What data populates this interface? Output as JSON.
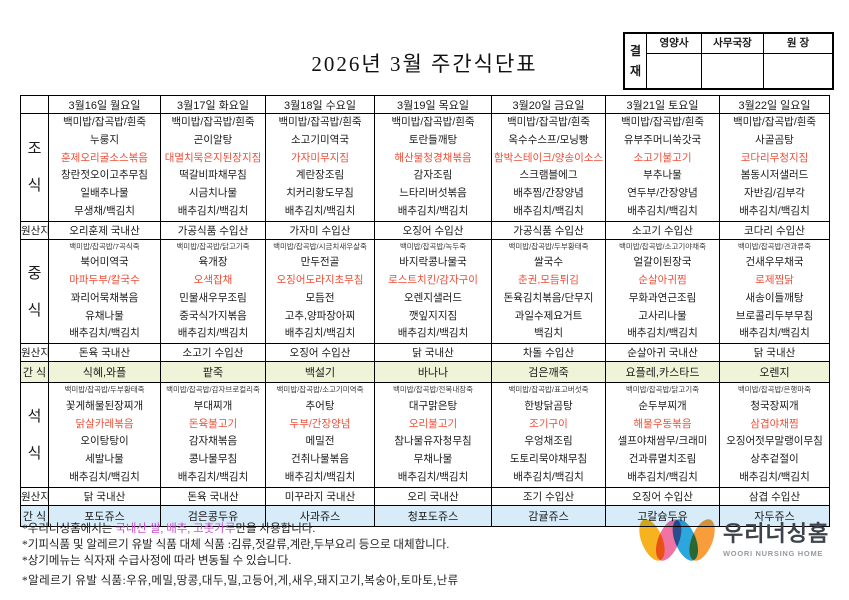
{
  "title": "2026년 3월 주간식단표",
  "approval": {
    "stamp": "결재",
    "cols": [
      "영양사",
      "사무국장",
      "원 장"
    ]
  },
  "colors": {
    "menu_highlight": "#ee4f38",
    "note_highlight": "#cb4fcb",
    "snack_row1_bg": "#eff4d8",
    "snack_row2_bg": "#d7ecf8",
    "logo_yellow": "#f6b21f",
    "logo_pink": "#f173a3",
    "logo_blue": "#2ba7dd",
    "logo_orange": "#f79d3c"
  },
  "table": {
    "days": [
      "3월16일 월요일",
      "3월17일 화요일",
      "3월18일 수요일",
      "3월19일 목요일",
      "3월20일 금요일",
      "3월21일 토요일",
      "3월22일 일요일"
    ],
    "sections": [
      {
        "id": "breakfast",
        "kind": "meal",
        "label": "조식",
        "red_index": 2,
        "days": [
          {
            "items": [
              "백미밥/잡곡밥/흰죽",
              "누룽지",
              "훈제오리굴소스볶음",
              "창란젓오이고추무침",
              "일배추나물",
              "무생채/백김치"
            ]
          },
          {
            "items": [
              "백미밥/잡곡밥/흰죽",
              "곤이알탕",
              "대멸치묵은지된장지짐",
              "떡갈비파채무침",
              "시금치나물",
              "배추김치/백김치"
            ]
          },
          {
            "items": [
              "백미밥/잡곡밥/흰죽",
              "소고기미역국",
              "가자미무지짐",
              "계란장조림",
              "치커리황도무침",
              "배추김치/백김치"
            ]
          },
          {
            "items": [
              "백미밥/잡곡밥/흰죽",
              "토란들깨탕",
              "해산물청경채볶음",
              "감자조림",
              "느타리버섯볶음",
              "배추김치/백김치"
            ]
          },
          {
            "items": [
              "백미밥/잡곡밥/흰죽",
              "옥수수스프/모닝빵",
              "함박스테이크/양송이소스",
              "스크램블에그",
              "배추찜/간장양념",
              "배추김치/백김치"
            ]
          },
          {
            "items": [
              "백미밥/잡곡밥/흰죽",
              "유부주머니쑥갓국",
              "소고기불고기",
              "부추나물",
              "연두부/간장양념",
              "배추김치/백김치"
            ]
          },
          {
            "items": [
              "백미밥/잡곡밥/흰죽",
              "사골곰탕",
              "코다리무청지짐",
              "봄동시저샐러드",
              "자반김/김부각",
              "배추김치/백김치"
            ]
          }
        ]
      },
      {
        "id": "origin-breakfast",
        "kind": "origin",
        "label": "원산지",
        "values": [
          "오리훈제 국내산",
          "가공식품 수입산",
          "가자미 수입산",
          "오징어 수입산",
          "가공식품 수입산",
          "소고기 수입산",
          "코다리 수입산"
        ]
      },
      {
        "id": "lunch",
        "kind": "meal",
        "label": "중식",
        "red_index": 1,
        "days": [
          {
            "rice": "백미밥/잡곡밥/7곡식죽",
            "items": [
              "북어미역국",
              "마파두부/칼국수",
              "꽈리어묵채볶음",
              "유채나물",
              "배추김치/백김치"
            ]
          },
          {
            "rice": "백미밥/잡곡밥/닭고기죽",
            "items": [
              "육개장",
              "오색잡채",
              "민물새우무조림",
              "중국식가지볶음",
              "배추김치/백김치"
            ]
          },
          {
            "rice": "백미밥/잡곡밥/시금치새우살죽",
            "items": [
              "만두전골",
              "오징어도라지초무침",
              "모듬전",
              "고추,양파장아찌",
              "배추김치/백김치"
            ]
          },
          {
            "rice": "백미밥/잡곡밥/녹두죽",
            "items": [
              "바지락콩나물국",
              "로스트치킨/감자구이",
              "오렌지샐러드",
              "깻잎지지짐",
              "배추김치/백김치"
            ]
          },
          {
            "rice": "백미밥/잡곡밥/두부황태죽",
            "items": [
              "쌀국수",
              "춘권,모듬튀김",
              "돈육김치볶음/단무지",
              "과일수제요거트",
              "백김치"
            ]
          },
          {
            "rice": "백미밥/잡곡밥/소고기야채죽",
            "items": [
              "얼갈이된장국",
              "순살아귀찜",
              "무화과연근조림",
              "고사리나물",
              "배추김치/백김치"
            ]
          },
          {
            "rice": "백미밥/잡곡밥/견과류죽",
            "items": [
              "건새우무채국",
              "로제찜닭",
              "새송이들깨탕",
              "브로콜리두부무침",
              "배추김치/백김치"
            ]
          }
        ]
      },
      {
        "id": "origin-lunch",
        "kind": "origin",
        "label": "원산지",
        "values": [
          "돈육 국내산",
          "소고기 수입산",
          "오징어 수입산",
          "닭 국내산",
          "차돌 수입산",
          "순살아귀 국내산",
          "닭 국내산"
        ]
      },
      {
        "id": "snack-day",
        "kind": "snack",
        "label": "간 식",
        "bg": "green",
        "values": [
          "식혜,와플",
          "팥죽",
          "백설기",
          "바나나",
          "검은깨죽",
          "요플레,카스타드",
          "오렌지"
        ]
      },
      {
        "id": "dinner",
        "kind": "meal",
        "label": "석식",
        "red_index": 1,
        "days": [
          {
            "rice": "백미밥/잡곡밥/두부황태죽",
            "items": [
              "꽃게해물된장찌개",
              "닭살카레볶음",
              "오이탕탕이",
              "세발나물",
              "배추김치/백김치"
            ]
          },
          {
            "rice": "백미밥/잡곡밥/감자브로컬리죽",
            "items": [
              "부대찌개",
              "돈육불고기",
              "감자채볶음",
              "콩나물무침",
              "배추김치/백김치"
            ]
          },
          {
            "rice": "백미밥/잡곡밥/소고기미역죽",
            "items": [
              "추어탕",
              "두부/간장양념",
              "메밀전",
              "건취나물볶음",
              "배추김치/백김치"
            ]
          },
          {
            "rice": "백미밥/잡곡밥/전복내장죽",
            "items": [
              "대구맑은탕",
              "오리불고기",
              "참나물유자청무침",
              "무채나물",
              "배추김치/백김치"
            ]
          },
          {
            "rice": "백미밥/잡곡밥/표고버섯죽",
            "items": [
              "한방닭곰탕",
              "조기구이",
              "우엉채조림",
              "도토리묵야채무침",
              "배추김치/백김치"
            ]
          },
          {
            "rice": "백미밥/잡곡밥/닭고기죽",
            "items": [
              "순두부찌개",
              "해물우동볶음",
              "셀프야채쌈무/크래미",
              "건과류멸치조림",
              "배추김치/백김치"
            ]
          },
          {
            "rice": "백미밥/잡곡밥/은행마죽",
            "items": [
              "청국장찌개",
              "삼겹야채찜",
              "오징어젓무말랭이무침",
              "상추겉절이",
              "배추김치/백김치"
            ]
          }
        ]
      },
      {
        "id": "origin-dinner",
        "kind": "origin",
        "label": "원산지",
        "values": [
          "닭 국내산",
          "돈육 국내산",
          "미꾸라지 국내산",
          "오리 국내산",
          "조기 수입산",
          "오징어 수입산",
          "삼겹 수입산"
        ]
      },
      {
        "id": "snack-evening",
        "kind": "snack",
        "label": "간 식",
        "bg": "blue",
        "values": [
          "포도쥬스",
          "검은콩두유",
          "사과쥬스",
          "청포도쥬스",
          "감귤쥬스",
          "고칼슘두유",
          "자두쥬스"
        ]
      }
    ]
  },
  "notes": {
    "line1_prefix": "*우리너싱홈에서는 ",
    "line1_highlight": "국내산 쌀, 배추, 고춧가루",
    "line1_suffix": "만을 사용합니다.",
    "line2": "*기피식품 및 알레르기 유발 식품 대체 식품 :김류,젓갈류,계란,두부요리 등으로 대체합니다.",
    "line3": "*상기메뉴는 식자재 수급사정에 따라 변동될 수 있습니다.",
    "line4": "*알레르기 유발 식품:우유,메밀,땅콩,대두,밀,고등어,게,새우,돼지고기,복숭아,토마토,난류"
  },
  "logo": {
    "name_kr": "우리너싱홈",
    "name_en": "WOORI NURSING HOME"
  }
}
